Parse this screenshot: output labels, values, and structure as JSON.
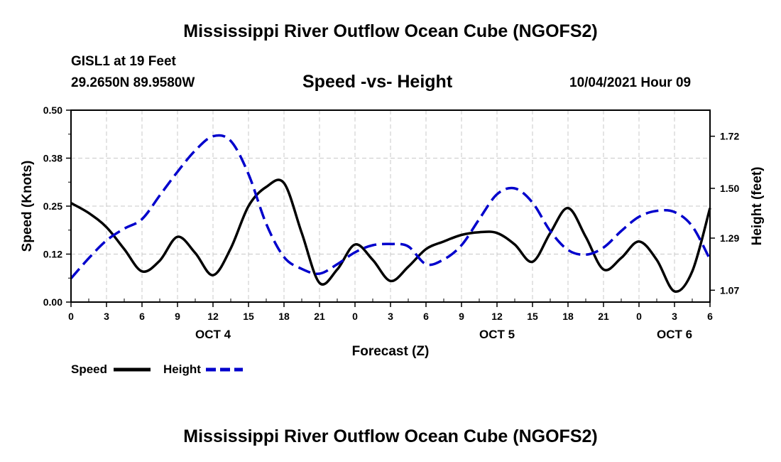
{
  "header": {
    "title": "Mississippi River Outflow Ocean Cube (NGOFS2)",
    "station": "GISL1 at 19 Feet",
    "coords": "29.2650N  89.9580W",
    "subtitle": "Speed -vs- Height",
    "datetime": "10/04/2021 Hour 09"
  },
  "footer": {
    "title": "Mississippi River Outflow Ocean Cube (NGOFS2)"
  },
  "chart_data": {
    "type": "line",
    "title": "Speed -vs- Height",
    "xlabel": "Forecast (Z)",
    "ylabel": "Speed (Knots)",
    "y2label": "Height (feet)",
    "xlim": [
      0,
      54
    ],
    "ylim": [
      0,
      0.5
    ],
    "y2lim": [
      1.02,
      1.83
    ],
    "x_ticks": [
      0,
      3,
      6,
      9,
      12,
      15,
      18,
      21,
      24,
      27,
      30,
      33,
      36,
      39,
      42,
      45,
      48,
      51,
      54
    ],
    "x_tick_labels": [
      "0",
      "3",
      "6",
      "9",
      "12",
      "15",
      "18",
      "21",
      "0",
      "3",
      "6",
      "9",
      "12",
      "15",
      "18",
      "21",
      "0",
      "3",
      "6"
    ],
    "date_labels": [
      {
        "x": 12,
        "label": "OCT 4"
      },
      {
        "x": 36,
        "label": "OCT 5"
      },
      {
        "x": 51,
        "label": "OCT 6"
      }
    ],
    "y_ticks": [
      0.0,
      0.125,
      0.25,
      0.375,
      0.5
    ],
    "y_tick_labels": [
      "0.00",
      "0.12",
      "0.25",
      "0.38",
      "0.50"
    ],
    "y2_ticks": [
      1.07,
      1.29,
      1.5,
      1.72
    ],
    "y2_tick_labels": [
      "1.07",
      "1.29",
      "1.50",
      "1.72"
    ],
    "grid": true,
    "legend": {
      "position": "bottom-left",
      "entries": [
        {
          "label": "Speed",
          "color": "#000000",
          "style": "solid"
        },
        {
          "label": "Height",
          "color": "#0000cc",
          "style": "dashed"
        }
      ]
    },
    "series": [
      {
        "name": "Speed",
        "axis": "left",
        "color": "#000000",
        "style": "solid",
        "x": [
          0,
          1.5,
          3,
          4.5,
          6,
          7.5,
          9,
          10.5,
          12,
          13.5,
          15,
          16.5,
          18,
          19.5,
          21,
          22.5,
          24,
          25.5,
          27,
          28.5,
          30,
          31.5,
          33,
          34.5,
          36,
          37.5,
          39,
          40.5,
          42,
          43.5,
          45,
          46.5,
          48,
          49.5,
          51,
          52.5,
          54
        ],
        "values": [
          0.258,
          0.232,
          0.195,
          0.138,
          0.08,
          0.108,
          0.17,
          0.128,
          0.07,
          0.14,
          0.25,
          0.3,
          0.31,
          0.18,
          0.05,
          0.085,
          0.15,
          0.11,
          0.055,
          0.092,
          0.138,
          0.158,
          0.175,
          0.182,
          0.18,
          0.15,
          0.105,
          0.18,
          0.245,
          0.17,
          0.085,
          0.115,
          0.158,
          0.11,
          0.028,
          0.08,
          0.245
        ]
      },
      {
        "name": "Height",
        "axis": "right",
        "color": "#0000cc",
        "style": "dashed",
        "x": [
          0,
          1.5,
          3,
          4.5,
          6,
          7.5,
          9,
          10.5,
          12,
          13.5,
          15,
          16.5,
          18,
          19.5,
          21,
          22.5,
          24,
          25.5,
          27,
          28.5,
          30,
          31.5,
          33,
          34.5,
          36,
          37.5,
          39,
          40.5,
          42,
          43.5,
          45,
          46.5,
          48,
          49.5,
          51,
          52.5,
          54
        ],
        "values": [
          1.12,
          1.205,
          1.28,
          1.33,
          1.37,
          1.47,
          1.57,
          1.66,
          1.72,
          1.7,
          1.56,
          1.35,
          1.21,
          1.16,
          1.14,
          1.18,
          1.23,
          1.26,
          1.265,
          1.255,
          1.18,
          1.2,
          1.26,
          1.37,
          1.475,
          1.5,
          1.44,
          1.32,
          1.24,
          1.22,
          1.25,
          1.32,
          1.38,
          1.405,
          1.4,
          1.34,
          1.2
        ]
      }
    ]
  }
}
